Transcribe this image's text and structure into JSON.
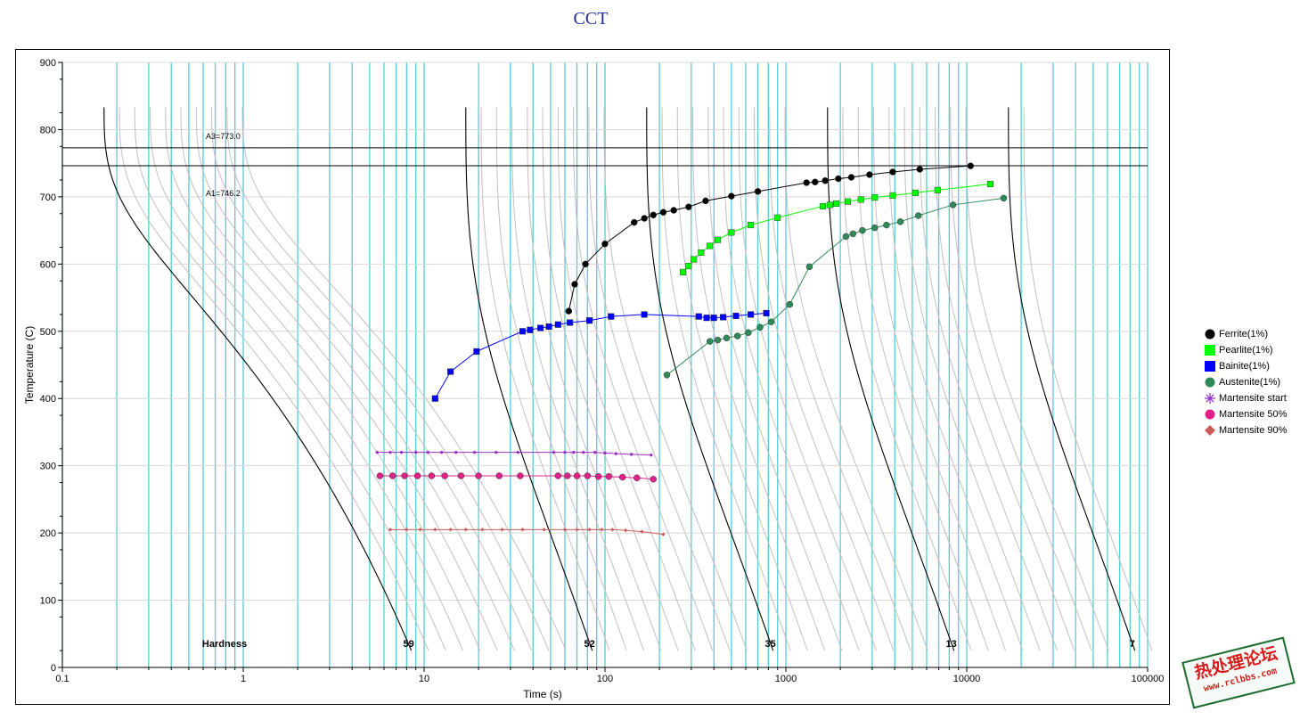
{
  "chart_data": {
    "type": "scatter",
    "title": "CCT",
    "xlabel": "Time (s)",
    "ylabel": "Temperature (C)",
    "xscale": "log",
    "xlim": [
      0.1,
      100000
    ],
    "ylim": [
      0,
      900
    ],
    "x_ticks": [
      "0.1",
      "1",
      "10",
      "100",
      "1000",
      "10000",
      "100000"
    ],
    "y_ticks": [
      "0",
      "100",
      "200",
      "300",
      "400",
      "500",
      "600",
      "700",
      "800",
      "900"
    ],
    "grid": true,
    "legend_position": "right",
    "reference_lines": [
      {
        "label": "A3=773.0",
        "y": 773.0
      },
      {
        "label": "A1=746.2",
        "y": 746.2
      }
    ],
    "hardness": {
      "label": "Hardness",
      "values": [
        "59",
        "52",
        "35",
        "13",
        "7"
      ]
    },
    "cooling_curves": [
      {
        "start_time": 0.17,
        "start_temp": 833,
        "end_time": 8.5
      },
      {
        "start_time": 17,
        "start_temp": 833,
        "end_time": 85
      },
      {
        "start_time": 170,
        "start_temp": 833,
        "end_time": 850
      },
      {
        "start_time": 1700,
        "start_temp": 833,
        "end_time": 8500
      },
      {
        "start_time": 17000,
        "start_temp": 833,
        "end_time": 85000
      }
    ],
    "series": [
      {
        "name": "Ferrite(1%)",
        "color": "#000000",
        "marker": "circle",
        "points": [
          [
            63,
            530
          ],
          [
            68,
            570
          ],
          [
            78,
            600
          ],
          [
            100,
            630
          ],
          [
            145,
            662
          ],
          [
            165,
            668
          ],
          [
            185,
            673
          ],
          [
            210,
            677
          ],
          [
            240,
            680
          ],
          [
            290,
            685
          ],
          [
            360,
            694
          ],
          [
            500,
            701
          ],
          [
            700,
            708
          ],
          [
            1300,
            721
          ],
          [
            1450,
            722
          ],
          [
            1650,
            724
          ],
          [
            1950,
            727
          ],
          [
            2300,
            729
          ],
          [
            2900,
            733
          ],
          [
            3900,
            737
          ],
          [
            5500,
            741
          ],
          [
            10500,
            746
          ]
        ]
      },
      {
        "name": "Pearlite(1%)",
        "color": "#00ff00",
        "marker": "square",
        "points": [
          [
            270,
            588
          ],
          [
            290,
            597
          ],
          [
            310,
            607
          ],
          [
            340,
            617
          ],
          [
            380,
            627
          ],
          [
            420,
            636
          ],
          [
            500,
            647
          ],
          [
            640,
            658
          ],
          [
            900,
            669
          ],
          [
            1600,
            686
          ],
          [
            1750,
            688
          ],
          [
            1900,
            690
          ],
          [
            2200,
            693
          ],
          [
            2600,
            696
          ],
          [
            3100,
            699
          ],
          [
            3900,
            702
          ],
          [
            5200,
            706
          ],
          [
            6900,
            710
          ],
          [
            13500,
            719
          ]
        ]
      },
      {
        "name": "Bainite(1%)",
        "color": "#0000ff",
        "marker": "square",
        "points": [
          [
            11.5,
            400
          ],
          [
            14,
            440
          ],
          [
            19.5,
            470
          ],
          [
            35,
            500
          ],
          [
            38.5,
            502
          ],
          [
            44,
            505
          ],
          [
            49,
            507
          ],
          [
            55,
            510
          ],
          [
            64,
            513
          ],
          [
            82,
            516
          ],
          [
            108,
            522
          ],
          [
            165,
            525
          ],
          [
            330,
            522
          ],
          [
            365,
            520
          ],
          [
            400,
            520
          ],
          [
            450,
            521
          ],
          [
            530,
            523
          ],
          [
            640,
            525
          ],
          [
            780,
            527
          ]
        ]
      },
      {
        "name": "Austenite(1%)",
        "color": "#2e8b57",
        "marker": "circle",
        "points": [
          [
            220,
            435
          ],
          [
            380,
            485
          ],
          [
            420,
            487
          ],
          [
            470,
            490
          ],
          [
            540,
            493
          ],
          [
            620,
            498
          ],
          [
            720,
            506
          ],
          [
            830,
            514
          ],
          [
            1050,
            540
          ],
          [
            1350,
            596
          ],
          [
            2150,
            641
          ],
          [
            2350,
            645
          ],
          [
            2650,
            650
          ],
          [
            3100,
            654
          ],
          [
            3600,
            658
          ],
          [
            4300,
            663
          ],
          [
            5400,
            672
          ],
          [
            8400,
            688
          ],
          [
            16000,
            698
          ]
        ]
      },
      {
        "name": "Martensite start",
        "color": "#9b30c8",
        "marker": "star",
        "points": [
          [
            5.5,
            320
          ],
          [
            6.5,
            320
          ],
          [
            7.5,
            320
          ],
          [
            9,
            320
          ],
          [
            10.5,
            320
          ],
          [
            12.5,
            320
          ],
          [
            15,
            320
          ],
          [
            19,
            320
          ],
          [
            25,
            320
          ],
          [
            33,
            320
          ],
          [
            52,
            320
          ],
          [
            60,
            320
          ],
          [
            67,
            320
          ],
          [
            76,
            320
          ],
          [
            88,
            320
          ],
          [
            100,
            319
          ],
          [
            115,
            318
          ],
          [
            140,
            317
          ],
          [
            180,
            316
          ]
        ]
      },
      {
        "name": "Martensite 50%",
        "color": "#e0218a",
        "marker": "circle",
        "points": [
          [
            5.7,
            285
          ],
          [
            6.7,
            285
          ],
          [
            7.8,
            285
          ],
          [
            9.2,
            285
          ],
          [
            11,
            285
          ],
          [
            13,
            285
          ],
          [
            16,
            285
          ],
          [
            20,
            285
          ],
          [
            26,
            285
          ],
          [
            34,
            285
          ],
          [
            55,
            285
          ],
          [
            62,
            285
          ],
          [
            70,
            285
          ],
          [
            80,
            285
          ],
          [
            92,
            284
          ],
          [
            105,
            284
          ],
          [
            125,
            283
          ],
          [
            150,
            282
          ],
          [
            185,
            280
          ]
        ]
      },
      {
        "name": "Martensite 90%",
        "color": "#cd5c5c",
        "marker": "diamond",
        "points": [
          [
            6.5,
            205
          ],
          [
            8,
            205
          ],
          [
            9.5,
            205
          ],
          [
            11.5,
            205
          ],
          [
            14,
            205
          ],
          [
            17,
            205
          ],
          [
            21,
            205
          ],
          [
            27,
            205
          ],
          [
            35,
            205
          ],
          [
            46,
            205
          ],
          [
            60,
            205
          ],
          [
            70,
            205
          ],
          [
            82,
            205
          ],
          [
            96,
            205
          ],
          [
            110,
            205
          ],
          [
            130,
            204
          ],
          [
            160,
            202
          ],
          [
            210,
            198
          ]
        ]
      }
    ]
  },
  "watermark": {
    "text_cn": "热处理论坛",
    "url": "www.rclbbs.com",
    "border_color": "#1e6b2e",
    "text_color": "#d51c1c"
  }
}
